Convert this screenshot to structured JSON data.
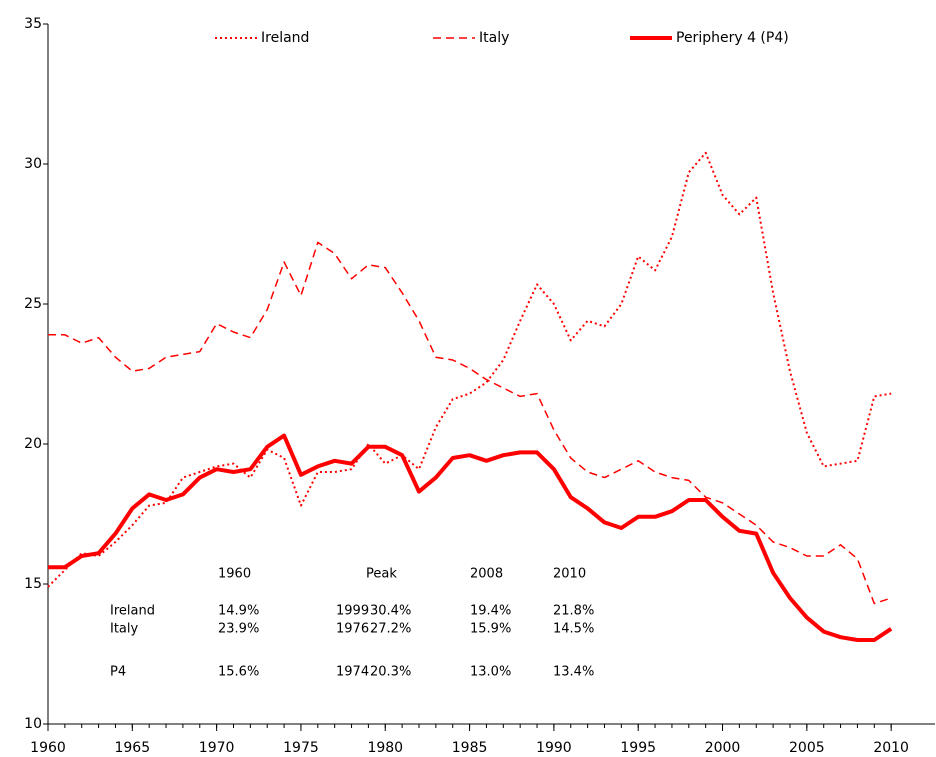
{
  "chart_data": {
    "type": "line",
    "x": [
      1960,
      1961,
      1962,
      1963,
      1964,
      1965,
      1966,
      1967,
      1968,
      1969,
      1970,
      1971,
      1972,
      1973,
      1974,
      1975,
      1976,
      1977,
      1978,
      1979,
      1980,
      1981,
      1982,
      1983,
      1984,
      1985,
      1986,
      1987,
      1988,
      1989,
      1990,
      1991,
      1992,
      1993,
      1994,
      1995,
      1996,
      1997,
      1998,
      1999,
      2000,
      2001,
      2002,
      2003,
      2004,
      2005,
      2006,
      2007,
      2008,
      2009,
      2010
    ],
    "series": [
      {
        "name": "Ireland",
        "color": "#ff0000",
        "dash": "dotted",
        "width": 2,
        "values": [
          14.9,
          15.5,
          16.1,
          16.0,
          16.5,
          17.1,
          17.8,
          17.9,
          18.8,
          19.0,
          19.2,
          19.3,
          18.8,
          19.8,
          19.5,
          17.8,
          19.0,
          19.0,
          19.1,
          20.0,
          19.3,
          19.6,
          19.1,
          20.6,
          21.6,
          21.8,
          22.2,
          23.0,
          24.4,
          25.7,
          25.0,
          23.7,
          24.4,
          24.2,
          25.0,
          26.7,
          26.2,
          27.4,
          29.7,
          30.4,
          28.9,
          28.2,
          28.8,
          25.4,
          22.6,
          20.4,
          19.2,
          19.3,
          19.4,
          21.7,
          21.8
        ]
      },
      {
        "name": "Italy",
        "color": "#ff0000",
        "dash": "dashed",
        "width": 1.5,
        "values": [
          23.9,
          23.9,
          23.6,
          23.8,
          23.1,
          22.6,
          22.7,
          23.1,
          23.2,
          23.3,
          24.3,
          24.0,
          23.8,
          24.8,
          26.5,
          25.3,
          27.2,
          26.8,
          25.9,
          26.4,
          26.3,
          25.4,
          24.4,
          23.1,
          23.0,
          22.7,
          22.3,
          22.0,
          21.7,
          21.8,
          20.5,
          19.5,
          19.0,
          18.8,
          19.1,
          19.4,
          19.0,
          18.8,
          18.7,
          18.1,
          17.9,
          17.5,
          17.1,
          16.5,
          16.3,
          16.0,
          16.0,
          16.4,
          15.9,
          14.3,
          14.5
        ]
      },
      {
        "name": "Periphery 4 (P4)",
        "color": "#ff0000",
        "dash": "solid",
        "width": 4,
        "values": [
          15.6,
          15.6,
          16.0,
          16.1,
          16.8,
          17.7,
          18.2,
          18.0,
          18.2,
          18.8,
          19.1,
          19.0,
          19.1,
          19.9,
          20.3,
          18.9,
          19.2,
          19.4,
          19.3,
          19.9,
          19.9,
          19.6,
          18.3,
          18.8,
          19.5,
          19.6,
          19.4,
          19.6,
          19.7,
          19.7,
          19.1,
          18.1,
          17.7,
          17.2,
          17.0,
          17.4,
          17.4,
          17.6,
          18.0,
          18.0,
          17.4,
          16.9,
          16.8,
          15.4,
          14.5,
          13.8,
          13.3,
          13.1,
          13.0,
          13.0,
          13.4
        ]
      }
    ],
    "xlim": [
      1960,
      2012.6
    ],
    "xticks": [
      1960,
      1965,
      1970,
      1975,
      1980,
      1985,
      1990,
      1995,
      2000,
      2005,
      2010
    ],
    "ylim": [
      10,
      35
    ],
    "yticks": [
      10,
      15,
      20,
      25,
      30,
      35
    ],
    "legend": "top",
    "annotation_table": {
      "columns": [
        "1960",
        "Peak",
        "2008",
        "2010"
      ],
      "rows": [
        {
          "label": "Ireland",
          "cells": [
            "14.9%",
            "1999",
            "30.4%",
            "19.4%",
            "21.8%"
          ]
        },
        {
          "label": "Italy",
          "cells": [
            "23.9%",
            "1976",
            "27.2%",
            "15.9%",
            "14.5%"
          ]
        },
        {
          "label": "P4",
          "cells": [
            "15.6%",
            "1974",
            "20.3%",
            "13.0%",
            "13.4%"
          ]
        }
      ]
    }
  }
}
